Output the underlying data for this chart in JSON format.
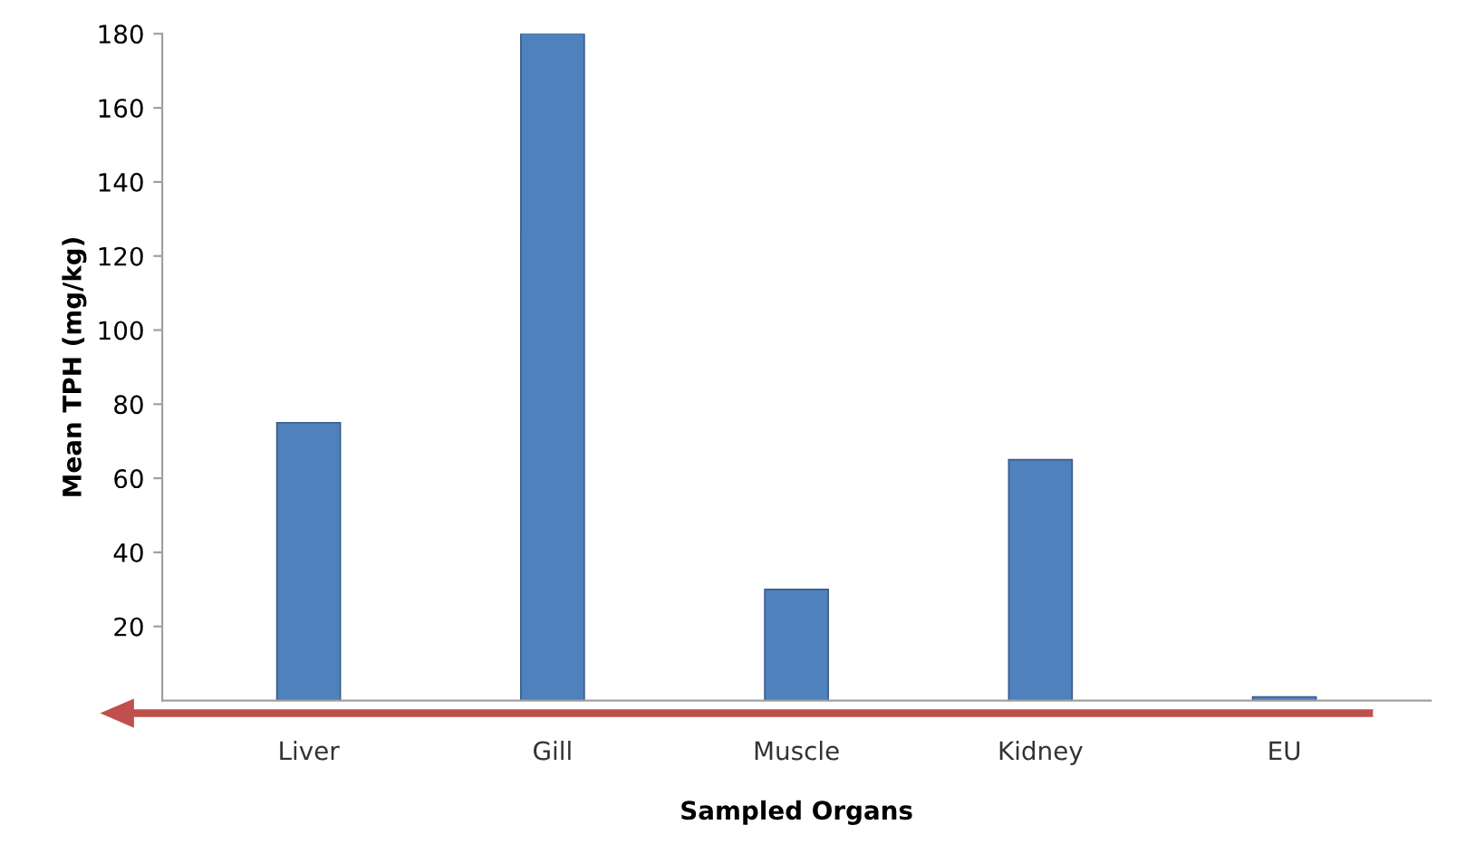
{
  "chart_data": {
    "type": "bar",
    "xlabel": "Sampled Organs",
    "ylabel": "Mean TPH (mg/kg)",
    "categories": [
      "Liver",
      "Gill",
      "Muscle",
      "Kidney",
      "EU"
    ],
    "values": [
      75,
      180,
      30,
      65,
      1
    ],
    "color": "#4f81bd",
    "ylim": [
      0,
      180
    ],
    "yticks": [
      20,
      40,
      60,
      80,
      100,
      120,
      140,
      160,
      180
    ],
    "grid": false,
    "legend": false
  }
}
